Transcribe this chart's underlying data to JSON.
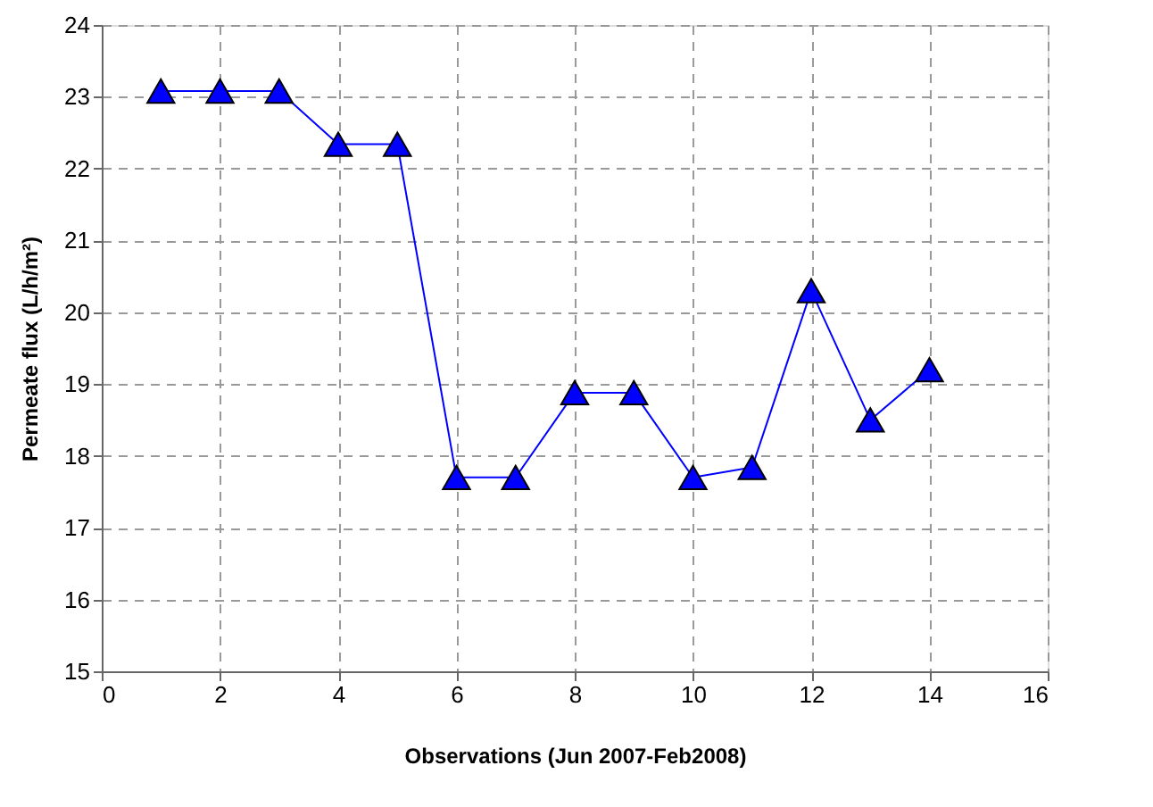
{
  "chart_data": {
    "type": "line",
    "xlabel": "Observations (Jun 2007-Feb2008)",
    "ylabel": "Permeate flux (L/h/m²)",
    "x": [
      1,
      2,
      3,
      4,
      5,
      6,
      7,
      8,
      9,
      10,
      11,
      12,
      13,
      14
    ],
    "series": [
      {
        "color": "#0000ff",
        "values": [
          23.08,
          23.08,
          23.08,
          22.34,
          22.34,
          17.7,
          17.7,
          18.88,
          18.88,
          17.7,
          17.84,
          20.3,
          18.5,
          19.2
        ]
      }
    ],
    "xlim": [
      0,
      16
    ],
    "xticks": [
      0,
      2,
      4,
      6,
      8,
      10,
      12,
      14,
      16
    ],
    "ylim": [
      15,
      24
    ],
    "yticks": [
      15,
      16,
      17,
      18,
      19,
      20,
      21,
      22,
      23,
      24
    ],
    "grid": true,
    "marker": "triangle",
    "line_style": "solid",
    "legend": false
  }
}
